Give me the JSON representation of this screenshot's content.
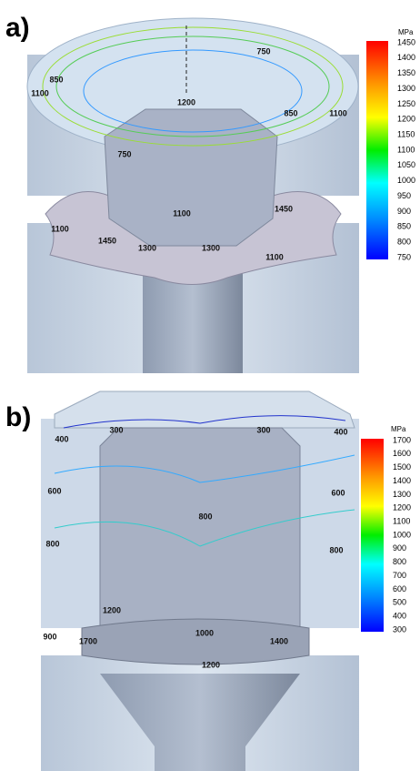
{
  "panels": [
    {
      "label": "a)",
      "unit": "MPa",
      "colorbar_ticks": [
        "1450",
        "1400",
        "1350",
        "1300",
        "1250",
        "1200",
        "1150",
        "1100",
        "1050",
        "1000",
        "950",
        "900",
        "850",
        "800",
        "750"
      ],
      "contour_labels": [
        "750",
        "850",
        "1100",
        "1200",
        "850",
        "1100",
        "750",
        "1100",
        "1450",
        "1100",
        "1450",
        "1300",
        "1300",
        "1100"
      ]
    },
    {
      "label": "b)",
      "unit": "MPa",
      "colorbar_ticks": [
        "1700",
        "1600",
        "1500",
        "1400",
        "1300",
        "1200",
        "1100",
        "1000",
        "900",
        "800",
        "700",
        "600",
        "500",
        "400",
        "300"
      ],
      "contour_labels": [
        "300",
        "300",
        "400",
        "400",
        "600",
        "600",
        "800",
        "800",
        "800",
        "1200",
        "900",
        "1700",
        "1000",
        "1400",
        "1200"
      ]
    }
  ]
}
